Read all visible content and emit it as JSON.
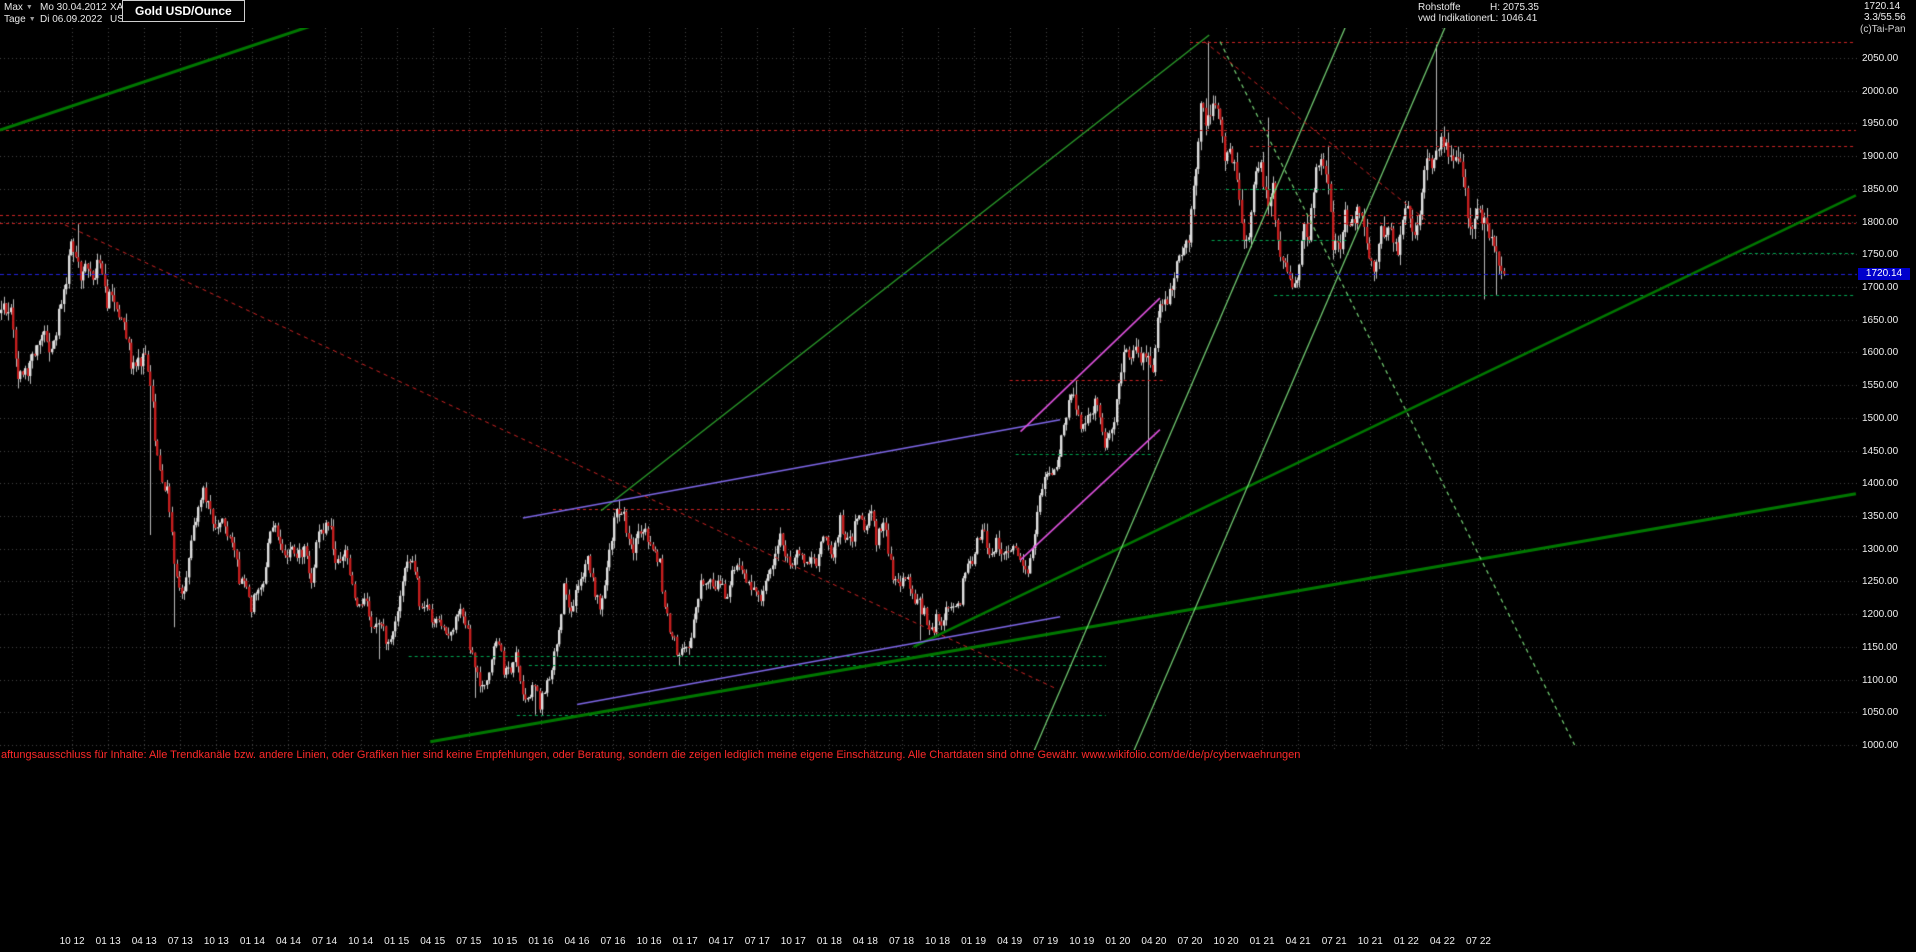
{
  "header": {
    "range_selector": "Max",
    "period_selector": "Tage",
    "start_date": "Mo 30.04.2012",
    "end_date": "Di 06.09.2022",
    "symbol": "XAUUSD",
    "currency": "USD",
    "title": "Gold USD/Ounce",
    "category": "Rohstoffe",
    "subcategory": "vwd Indikationen",
    "high_label": "H: 2075.35",
    "low_label": "L: 1046.41",
    "last_price": "1720.14",
    "change_info": "3.3/55.56",
    "copyright": "(c)Tai-Pan"
  },
  "axis": {
    "price_min": 1000,
    "price_max": 2050,
    "price_step": 50,
    "last_price_badge": "1720.14",
    "date_ticks": [
      "10 12",
      "01 13",
      "04 13",
      "07 13",
      "10 13",
      "01 14",
      "04 14",
      "07 14",
      "10 14",
      "01 15",
      "04 15",
      "07 15",
      "10 15",
      "01 16",
      "04 16",
      "07 16",
      "10 16",
      "01 17",
      "04 17",
      "07 17",
      "10 17",
      "01 18",
      "04 18",
      "07 18",
      "10 18",
      "01 19",
      "04 19",
      "07 19",
      "10 19",
      "01 20",
      "04 20",
      "07 20",
      "10 20",
      "01 21",
      "04 21",
      "07 21",
      "10 21",
      "01 22",
      "04 22",
      "07 22"
    ]
  },
  "chart_data": {
    "type": "candlestick",
    "title": "Gold USD/Ounce",
    "symbol": "XAUUSD",
    "currency": "USD",
    "timeframe": "Tage",
    "x_range": {
      "start": "2012-04-30",
      "end": "2022-09-06"
    },
    "y_axis": {
      "min": 1000,
      "max": 2050,
      "step": 50,
      "unit": "USD/Ounce"
    },
    "all_time_high": 2075.35,
    "all_time_low": 1046.41,
    "last_price": 1720.14,
    "monthly_closes": {
      "start_month": "2012-04",
      "start_price": 1660,
      "values": [
        1664,
        1562,
        1597,
        1614,
        1654,
        1772,
        1719,
        1715,
        1675,
        1662,
        1580,
        1597,
        1477,
        1387,
        1235,
        1312,
        1395,
        1329,
        1324,
        1253,
        1205,
        1244,
        1326,
        1284,
        1291,
        1250,
        1327,
        1282,
        1287,
        1208,
        1173,
        1175,
        1184,
        1283,
        1213,
        1184,
        1184,
        1191,
        1172,
        1095,
        1134,
        1115,
        1142,
        1065,
        1061,
        1118,
        1238,
        1233,
        1293,
        1215,
        1321,
        1351,
        1309,
        1316,
        1277,
        1173,
        1152,
        1210,
        1249,
        1249,
        1268,
        1269,
        1242,
        1269,
        1321,
        1280,
        1271,
        1275,
        1303,
        1345,
        1318,
        1325,
        1315,
        1301,
        1253,
        1224,
        1201,
        1192,
        1215,
        1222,
        1282,
        1321,
        1313,
        1292,
        1284,
        1306,
        1410,
        1414,
        1520,
        1472,
        1513,
        1464,
        1517,
        1589,
        1586,
        1577,
        1687,
        1730,
        1781,
        1976,
        1968,
        1886,
        1879,
        1777,
        1898,
        1848,
        1734,
        1708,
        1769,
        1907,
        1770,
        1814,
        1814,
        1757,
        1783,
        1775,
        1829,
        1797,
        1909,
        1937,
        1897,
        1837,
        1807,
        1766,
        1711,
        1720.14
      ]
    },
    "spike_extremes": [
      {
        "month": "2012-10",
        "high": 1796
      },
      {
        "month": "2013-04",
        "low": 1321
      },
      {
        "month": "2013-06",
        "low": 1180
      },
      {
        "month": "2014-11",
        "low": 1131
      },
      {
        "month": "2015-07",
        "low": 1072
      },
      {
        "month": "2015-12",
        "low": 1046.41
      },
      {
        "month": "2016-07",
        "high": 1375
      },
      {
        "month": "2016-12",
        "low": 1122
      },
      {
        "month": "2018-08",
        "low": 1160
      },
      {
        "month": "2019-09",
        "high": 1557
      },
      {
        "month": "2020-03",
        "low": 1451
      },
      {
        "month": "2020-08",
        "high": 2075.35
      },
      {
        "month": "2021-01",
        "high": 1959
      },
      {
        "month": "2021-06",
        "high": 1916
      },
      {
        "month": "2022-03",
        "high": 2070.44
      },
      {
        "month": "2022-07",
        "low": 1681
      },
      {
        "month": "2022-08",
        "low": 1688
      }
    ],
    "overlays": {
      "current_price_line": {
        "price": 1720.14,
        "color_key": "current_price_blue"
      },
      "trendlines": [
        {
          "name": "upper-left-channel",
          "color_key": "trend_dark_green",
          "width": 3,
          "style": "solid",
          "m1": 0,
          "p1": 1940,
          "m2": 32.4,
          "p2": 2139
        },
        {
          "name": "long-term-support",
          "color_key": "trend_dark_green",
          "width": 3,
          "style": "solid",
          "m1": 35.8,
          "p1": 1005,
          "m2": 154.4,
          "p2": 1384
        },
        {
          "name": "mid-rising-support",
          "color_key": "trend_dark_green",
          "width": 2.5,
          "style": "solid",
          "m1": 76,
          "p1": 1150,
          "m2": 154.4,
          "p2": 1840
        },
        {
          "name": "highs-2016-2020",
          "color_key": "trend_green",
          "width": 1.3,
          "style": "solid",
          "m1": 50,
          "p1": 1358,
          "m2": 100.6,
          "p2": 2085
        },
        {
          "name": "steep-rally-channel-left",
          "color_key": "trend_pale_green",
          "width": 1.2,
          "style": "solid",
          "m1": 85.7,
          "p1": 977,
          "m2": 111.9,
          "p2": 2096
        },
        {
          "name": "steep-rally-channel-right",
          "color_key": "trend_pale_green",
          "width": 1.2,
          "style": "solid",
          "m1": 94,
          "p1": 977,
          "m2": 120.2,
          "p2": 2096
        },
        {
          "name": "pale-descending",
          "color_key": "trend_pale_green",
          "width": 1.2,
          "style": "dashed",
          "m1": 101.5,
          "p1": 2075,
          "m2": 131,
          "p2": 1000
        },
        {
          "name": "violet-mid-channel-upper",
          "color_key": "violet",
          "width": 1.5,
          "style": "solid",
          "m1": 43.5,
          "p1": 1347,
          "m2": 88.2,
          "p2": 1497
        },
        {
          "name": "violet-mid-channel-lower",
          "color_key": "violet",
          "width": 1.5,
          "style": "solid",
          "m1": 48,
          "p1": 1062,
          "m2": 88.2,
          "p2": 1196
        },
        {
          "name": "magenta-rally-upper",
          "color_key": "magenta",
          "width": 1.5,
          "style": "solid",
          "m1": 84.9,
          "p1": 1479,
          "m2": 96.5,
          "p2": 1683
        },
        {
          "name": "magenta-rally-lower",
          "color_key": "magenta",
          "width": 1.5,
          "style": "solid",
          "m1": 84.9,
          "p1": 1283,
          "m2": 96.5,
          "p2": 1482
        },
        {
          "name": "red-downtrend-2012-2016",
          "color_key": "resistance_red",
          "width": 1,
          "style": "dashed",
          "m1": 5.4,
          "p1": 1795,
          "m2": 88,
          "p2": 1085
        },
        {
          "name": "red-downtrend-2020",
          "color_key": "resistance_red",
          "width": 1,
          "style": "dashed",
          "m1": 100.2,
          "p1": 2075,
          "m2": 119,
          "p2": 1797
        }
      ],
      "horizontal_levels": [
        {
          "price": 2075,
          "m1": 99,
          "m2": 154.4,
          "color_key": "resistance_red"
        },
        {
          "price": 1940,
          "m1": 0,
          "m2": 154.4,
          "color_key": "resistance_red"
        },
        {
          "price": 1915,
          "m1": 104,
          "m2": 154.4,
          "color_key": "resistance_red"
        },
        {
          "price": 1810,
          "m1": 0,
          "m2": 154.4,
          "color_key": "resistance_red"
        },
        {
          "price": 1798,
          "m1": 0,
          "m2": 154.4,
          "color_key": "resistance_red"
        },
        {
          "price": 1558,
          "m1": 84,
          "m2": 97,
          "color_key": "resistance_red"
        },
        {
          "price": 1360,
          "m1": 46,
          "m2": 66,
          "color_key": "resistance_red"
        },
        {
          "price": 1850,
          "m1": 102,
          "m2": 112,
          "color_key": "support_green"
        },
        {
          "price": 1772,
          "m1": 100.8,
          "m2": 112,
          "color_key": "support_green"
        },
        {
          "price": 1752,
          "m1": 145,
          "m2": 154.4,
          "color_key": "support_green"
        },
        {
          "price": 1688,
          "m1": 106,
          "m2": 154.4,
          "color_key": "support_green"
        },
        {
          "price": 1445,
          "m1": 84.5,
          "m2": 96,
          "color_key": "support_green"
        },
        {
          "price": 1136,
          "m1": 34,
          "m2": 92,
          "color_key": "support_green"
        },
        {
          "price": 1122,
          "m1": 44,
          "m2": 92,
          "color_key": "support_green"
        },
        {
          "price": 1046,
          "m1": 43,
          "m2": 92,
          "color_key": "support_green"
        }
      ]
    }
  },
  "colors": {
    "background": "#000000",
    "grid": "#454545",
    "text": "#f0f0f0",
    "candle_up": "#e0e0e0",
    "candle_down": "#c41e1e",
    "candle_wick": "#b9b9b9",
    "trend_dark_green": "#007800",
    "trend_green": "#2b9e2b",
    "trend_pale_green": "#74d074",
    "violet": "#7d66e6",
    "magenta": "#e052e0",
    "resistance_red": "#cc2424",
    "support_green": "#00a651",
    "current_price_blue": "#2222dd",
    "badge_bg": "#0000cc",
    "disclaimer": "#ff2a2a"
  },
  "disclaimer": "aftungsausschluss für Inhalte: Alle Trendkanäle bzw. andere Linien, oder Grafiken hier sind keine Empfehlungen, oder Beratung, sondern die zeigen lediglich meine eigene Einschätzung. Alle Chartdaten sind ohne Gewähr.  www.wikifolio.com/de/de/p/cyberwaehrungen"
}
